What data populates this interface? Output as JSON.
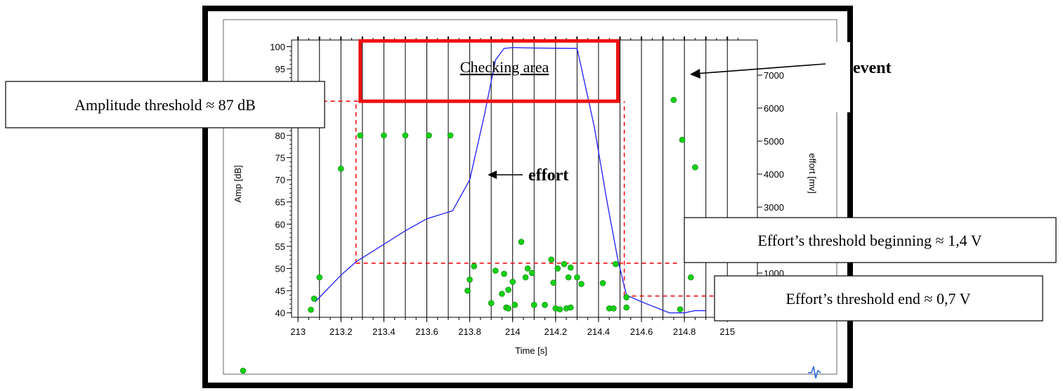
{
  "chart_data": {
    "type": "scatter",
    "xlabel": "Time [s]",
    "ylabel_left": "Amp [dB]",
    "ylabel_right": "effort [mv]",
    "xlim": [
      212.97,
      215.14
    ],
    "ylim_left": [
      39,
      101.5
    ],
    "ylim_right": [
      0,
      8000
    ],
    "x_ticks": [
      "213",
      "213.2",
      "213.4",
      "213.6",
      "213.8",
      "214",
      "214.2",
      "214.4",
      "214.6",
      "214.8",
      "215"
    ],
    "x_tick_values": [
      213,
      213.2,
      213.4,
      213.6,
      213.8,
      214,
      214.2,
      214.4,
      214.6,
      214.8,
      215
    ],
    "y_left_ticks": [
      "40",
      "45",
      "50",
      "55",
      "60",
      "65",
      "70",
      "75",
      "80",
      "85",
      "90",
      "95",
      "100"
    ],
    "y_left_tick_values": [
      40,
      45,
      50,
      55,
      60,
      65,
      70,
      75,
      80,
      85,
      90,
      95,
      100
    ],
    "y_right_ticks": [
      "1000",
      "3000",
      "4000",
      "5000",
      "6000",
      "7000"
    ],
    "y_right_tick_values": [
      1000,
      3000,
      4000,
      5000,
      6000,
      7000
    ],
    "grid": "vertical lines at every 0.1 s",
    "event_points": [
      {
        "x": 213.06,
        "y": 40.7
      },
      {
        "x": 213.075,
        "y": 43.2
      },
      {
        "x": 213.1,
        "y": 48.0
      },
      {
        "x": 213.2,
        "y": 72.5
      },
      {
        "x": 213.29,
        "y": 80.0
      },
      {
        "x": 213.4,
        "y": 80.0
      },
      {
        "x": 213.5,
        "y": 80.0
      },
      {
        "x": 213.61,
        "y": 80.0
      },
      {
        "x": 213.71,
        "y": 80.0
      },
      {
        "x": 213.79,
        "y": 45.0
      },
      {
        "x": 213.8,
        "y": 47.5
      },
      {
        "x": 213.82,
        "y": 50.5
      },
      {
        "x": 213.9,
        "y": 42.2
      },
      {
        "x": 213.92,
        "y": 49.5
      },
      {
        "x": 213.95,
        "y": 44.3
      },
      {
        "x": 213.96,
        "y": 48.8
      },
      {
        "x": 213.97,
        "y": 41.2
      },
      {
        "x": 213.98,
        "y": 41.0
      },
      {
        "x": 213.98,
        "y": 45.2
      },
      {
        "x": 214.0,
        "y": 47.0
      },
      {
        "x": 214.01,
        "y": 41.8
      },
      {
        "x": 214.04,
        "y": 56.0
      },
      {
        "x": 214.06,
        "y": 48.0
      },
      {
        "x": 214.07,
        "y": 50.0
      },
      {
        "x": 214.09,
        "y": 49.0
      },
      {
        "x": 214.1,
        "y": 41.8
      },
      {
        "x": 214.15,
        "y": 41.8
      },
      {
        "x": 214.18,
        "y": 52.0
      },
      {
        "x": 214.19,
        "y": 46.8
      },
      {
        "x": 214.2,
        "y": 41.0
      },
      {
        "x": 214.21,
        "y": 50.0
      },
      {
        "x": 214.22,
        "y": 40.8
      },
      {
        "x": 214.24,
        "y": 51.0
      },
      {
        "x": 214.25,
        "y": 41.0
      },
      {
        "x": 214.26,
        "y": 48.0
      },
      {
        "x": 214.27,
        "y": 50.2
      },
      {
        "x": 214.27,
        "y": 41.2
      },
      {
        "x": 214.3,
        "y": 48.0
      },
      {
        "x": 214.32,
        "y": 46.5
      },
      {
        "x": 214.42,
        "y": 46.7
      },
      {
        "x": 214.45,
        "y": 41.0
      },
      {
        "x": 214.47,
        "y": 41.0
      },
      {
        "x": 214.48,
        "y": 51.0
      },
      {
        "x": 214.53,
        "y": 43.5
      },
      {
        "x": 214.53,
        "y": 41.2
      },
      {
        "x": 214.75,
        "y": 88.0
      },
      {
        "x": 214.78,
        "y": 40.8
      },
      {
        "x": 214.79,
        "y": 79.0
      },
      {
        "x": 214.83,
        "y": 48.0
      },
      {
        "x": 214.85,
        "y": 72.8
      }
    ],
    "effort_curve": [
      {
        "x": 213.08,
        "y": 42.5
      },
      {
        "x": 213.1,
        "y": 43.5
      },
      {
        "x": 213.2,
        "y": 48.5
      },
      {
        "x": 213.27,
        "y": 51.5
      },
      {
        "x": 213.5,
        "y": 58.5
      },
      {
        "x": 213.6,
        "y": 61.2
      },
      {
        "x": 213.72,
        "y": 63.0
      },
      {
        "x": 213.8,
        "y": 70.0
      },
      {
        "x": 213.87,
        "y": 85.0
      },
      {
        "x": 213.92,
        "y": 97.0
      },
      {
        "x": 213.96,
        "y": 99.6
      },
      {
        "x": 214.0,
        "y": 99.8
      },
      {
        "x": 214.1,
        "y": 99.7
      },
      {
        "x": 214.3,
        "y": 99.6
      },
      {
        "x": 214.38,
        "y": 82.0
      },
      {
        "x": 214.44,
        "y": 65.0
      },
      {
        "x": 214.49,
        "y": 52.0
      },
      {
        "x": 214.53,
        "y": 44.0
      },
      {
        "x": 214.6,
        "y": 42.5
      },
      {
        "x": 214.73,
        "y": 40.0
      },
      {
        "x": 214.8,
        "y": 40.0
      },
      {
        "x": 214.85,
        "y": 40.5
      },
      {
        "x": 214.9,
        "y": 40.5
      }
    ],
    "threshold_lines": [
      {
        "name": "amplitude",
        "y": 87.7,
        "x_from": 212.9,
        "x_to": 214.52
      },
      {
        "name": "effort_beginning",
        "y": 51.2,
        "x_from": 213.27,
        "x_to": 214.78
      },
      {
        "name": "effort_end",
        "y": 43.8,
        "x_from": 214.52,
        "x_to": 214.95
      }
    ],
    "threshold_verticals": [
      {
        "x": 213.27,
        "y_from": 51.2,
        "y_to": 87.7
      },
      {
        "x": 214.52,
        "y_from": 43.8,
        "y_to": 87.7
      }
    ],
    "checking_area": {
      "x_from": 213.29,
      "x_to": 214.49,
      "y_from": 87.7,
      "y_to": 101.3
    }
  },
  "annotations": {
    "checking_area_label": "Checking area",
    "event_label": "event",
    "effort_label": "effort",
    "amplitude_threshold": "Amplitude threshold ≈ 87 dB",
    "effort_threshold_beginning": "Effort’s threshold beginning ≈ 1,4 V",
    "effort_threshold_end": "Effort’s threshold end ≈ 0,7 V"
  },
  "colors": {
    "event_points": "#16d016",
    "effort_line": "#2a2aff",
    "threshold": "#ee1111",
    "checking_box": "#ee1111",
    "frame": "#000000",
    "grid": "#000000"
  },
  "corner_icon": "waveform-icon"
}
